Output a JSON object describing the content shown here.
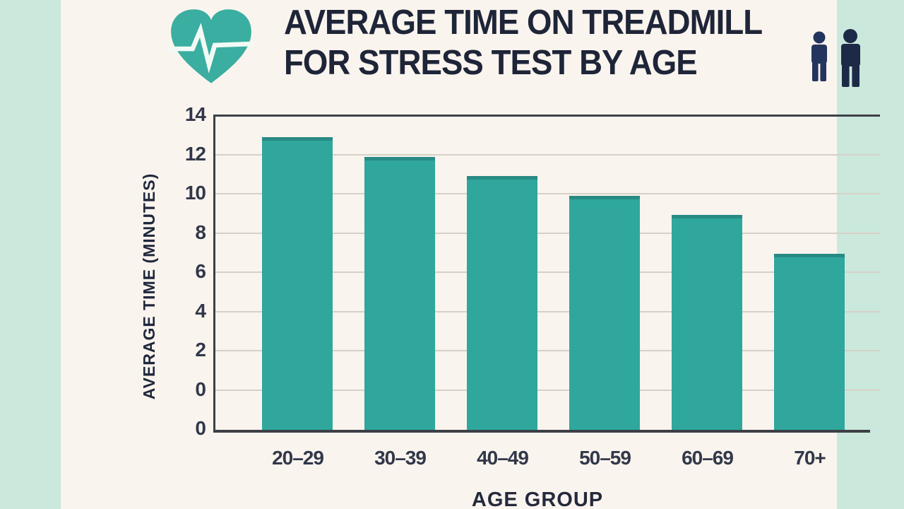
{
  "page": {
    "background": "#cbe8dc",
    "card_background": "#faf4ee"
  },
  "header": {
    "title_line1": "AVERAGE TIME ON TREADMILL",
    "title_line2": "FOR STRESS TEST BY AGE"
  },
  "icons": {
    "heart": "heart-with-ekg-line",
    "people": "two-person-figures"
  },
  "colors": {
    "bar": "#2fa79c",
    "heart": "#3aaea1",
    "ekg_line": "#f2faf6",
    "title_text": "#1e2538",
    "axis_text": "#32384a",
    "gridline": "#d6d0c8",
    "axis_line": "#3d4046",
    "person_small": "#23355e",
    "person_large": "#1d2a47"
  },
  "chart_data": {
    "type": "bar",
    "title": "AVERAGE TIME ON TREADMILL FOR STRESS TEST BY AGE",
    "xlabel": "AGE GROUP",
    "ylabel": "AVERAGE TIME (MINUTES)",
    "categories": [
      "20–29",
      "30–39",
      "40–49",
      "50–59",
      "60–69",
      "70+"
    ],
    "values": [
      13,
      12,
      11,
      10,
      9,
      7
    ],
    "y_tick_labels": [
      "14",
      "12",
      "10",
      "8",
      "6",
      "4",
      "2",
      "0",
      "0"
    ],
    "ylim": [
      0,
      14
    ],
    "grid": true,
    "legend": false
  }
}
